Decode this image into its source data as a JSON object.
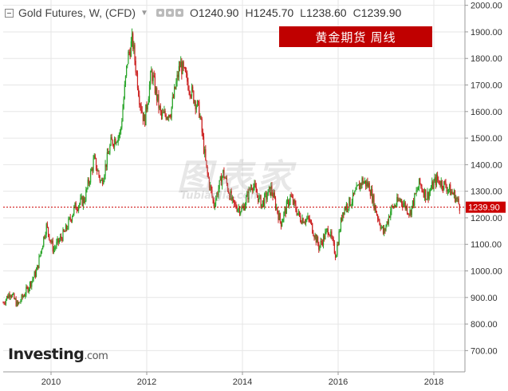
{
  "header": {
    "title": "Gold Futures, W, (CFD)",
    "open_label": "O",
    "open_value": "1240.90",
    "high_label": "H",
    "high_value": "1245.70",
    "low_label": "L",
    "low_value": "1238.60",
    "close_label": "C",
    "close_value": "1239.90"
  },
  "banner": {
    "text": "黄金期货  周线",
    "color": "#c00000"
  },
  "logo": {
    "brand": "Investing",
    "suffix": ".com"
  },
  "watermark": {
    "line1": "图表家",
    "line2": "TubiaoJia.com"
  },
  "colors": {
    "up": "#2aa52a",
    "down": "#cc2222",
    "price_line": "#cc0000",
    "grid": "#e6e6e6"
  },
  "chart_data": {
    "type": "candlestick",
    "title": "Gold Futures, W, (CFD)",
    "x_tick_labels": [
      "2010",
      "2012",
      "2014",
      "2016",
      "2018"
    ],
    "y_tick_labels": [
      "700.00",
      "800.00",
      "900.00",
      "1000.00",
      "1100.00",
      "1200.00",
      "1300.00",
      "1400.00",
      "1500.00",
      "1600.00",
      "1700.00",
      "1800.00",
      "1900.00",
      "2000.00"
    ],
    "xlim": [
      2009.0,
      2018.65
    ],
    "ylim": [
      620,
      2020
    ],
    "current_price": 1239.9,
    "current_price_label": "1239.90",
    "series": [
      {
        "t": 2009.0,
        "p": 880
      },
      {
        "t": 2009.15,
        "p": 920
      },
      {
        "t": 2009.3,
        "p": 870
      },
      {
        "t": 2009.5,
        "p": 930
      },
      {
        "t": 2009.7,
        "p": 1000
      },
      {
        "t": 2009.9,
        "p": 1170
      },
      {
        "t": 2010.05,
        "p": 1080
      },
      {
        "t": 2010.3,
        "p": 1150
      },
      {
        "t": 2010.5,
        "p": 1240
      },
      {
        "t": 2010.7,
        "p": 1270
      },
      {
        "t": 2010.9,
        "p": 1420
      },
      {
        "t": 2011.05,
        "p": 1330
      },
      {
        "t": 2011.25,
        "p": 1480
      },
      {
        "t": 2011.45,
        "p": 1520
      },
      {
        "t": 2011.6,
        "p": 1800
      },
      {
        "t": 2011.7,
        "p": 1870
      },
      {
        "t": 2011.85,
        "p": 1650
      },
      {
        "t": 2011.95,
        "p": 1560
      },
      {
        "t": 2012.1,
        "p": 1750
      },
      {
        "t": 2012.3,
        "p": 1580
      },
      {
        "t": 2012.5,
        "p": 1600
      },
      {
        "t": 2012.7,
        "p": 1780
      },
      {
        "t": 2012.9,
        "p": 1690
      },
      {
        "t": 2013.1,
        "p": 1600
      },
      {
        "t": 2013.25,
        "p": 1380
      },
      {
        "t": 2013.4,
        "p": 1250
      },
      {
        "t": 2013.6,
        "p": 1370
      },
      {
        "t": 2013.8,
        "p": 1250
      },
      {
        "t": 2014.0,
        "p": 1230
      },
      {
        "t": 2014.2,
        "p": 1330
      },
      {
        "t": 2014.4,
        "p": 1250
      },
      {
        "t": 2014.6,
        "p": 1310
      },
      {
        "t": 2014.8,
        "p": 1180
      },
      {
        "t": 2015.0,
        "p": 1280
      },
      {
        "t": 2015.2,
        "p": 1200
      },
      {
        "t": 2015.4,
        "p": 1190
      },
      {
        "t": 2015.6,
        "p": 1090
      },
      {
        "t": 2015.8,
        "p": 1160
      },
      {
        "t": 2015.95,
        "p": 1060
      },
      {
        "t": 2016.1,
        "p": 1230
      },
      {
        "t": 2016.3,
        "p": 1270
      },
      {
        "t": 2016.5,
        "p": 1340
      },
      {
        "t": 2016.65,
        "p": 1320
      },
      {
        "t": 2016.8,
        "p": 1220
      },
      {
        "t": 2016.95,
        "p": 1140
      },
      {
        "t": 2017.1,
        "p": 1230
      },
      {
        "t": 2017.3,
        "p": 1270
      },
      {
        "t": 2017.5,
        "p": 1220
      },
      {
        "t": 2017.7,
        "p": 1330
      },
      {
        "t": 2017.85,
        "p": 1280
      },
      {
        "t": 2018.05,
        "p": 1345
      },
      {
        "t": 2018.25,
        "p": 1320
      },
      {
        "t": 2018.45,
        "p": 1280
      },
      {
        "t": 2018.55,
        "p": 1240
      }
    ],
    "grid": true
  }
}
